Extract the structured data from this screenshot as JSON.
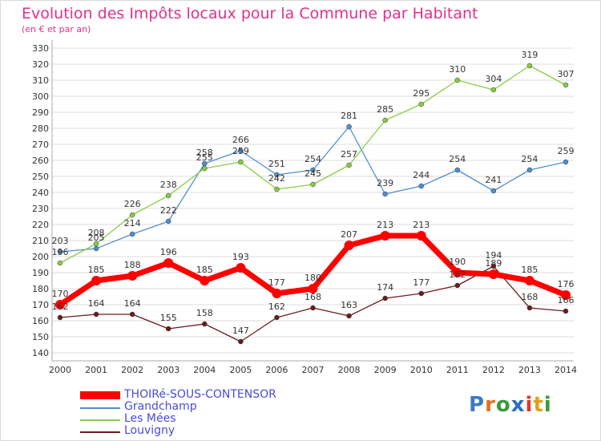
{
  "title": "Evolution des Impôts locaux pour la Commune par Habitant",
  "subtitle": "(en € et par an)",
  "logo": {
    "text": "Proxiti"
  },
  "chart_data": {
    "type": "line",
    "x": [
      "2000",
      "2001",
      "2002",
      "2003",
      "2004",
      "2005",
      "2006",
      "2007",
      "2008",
      "2009",
      "2010",
      "2011",
      "2012",
      "2013",
      "2014"
    ],
    "ylim": [
      140,
      330
    ],
    "ytick_step": 10,
    "grid": "horizontal",
    "legend_placement": "bottom-left",
    "series": [
      {
        "name": "THOIRé-SOUS-CONTENSOR",
        "color": "#ff0000",
        "values": [
          170,
          185,
          188,
          196,
          185,
          193,
          177,
          180,
          207,
          213,
          213,
          190,
          189,
          185,
          176
        ],
        "bold": true
      },
      {
        "name": "Grandchamp",
        "color": "#4f8fcf",
        "values": [
          203,
          205,
          214,
          222,
          258,
          266,
          251,
          254,
          281,
          239,
          244,
          254,
          241,
          254,
          259
        ]
      },
      {
        "name": "Les Mées",
        "color": "#88cc44",
        "values": [
          196,
          208,
          226,
          238,
          255,
          259,
          242,
          245,
          257,
          285,
          295,
          310,
          304,
          319,
          307
        ]
      },
      {
        "name": "Louvigny",
        "color": "#6b1c1c",
        "values": [
          162,
          164,
          164,
          155,
          158,
          147,
          162,
          168,
          163,
          174,
          177,
          182,
          194,
          168,
          166
        ]
      }
    ]
  }
}
